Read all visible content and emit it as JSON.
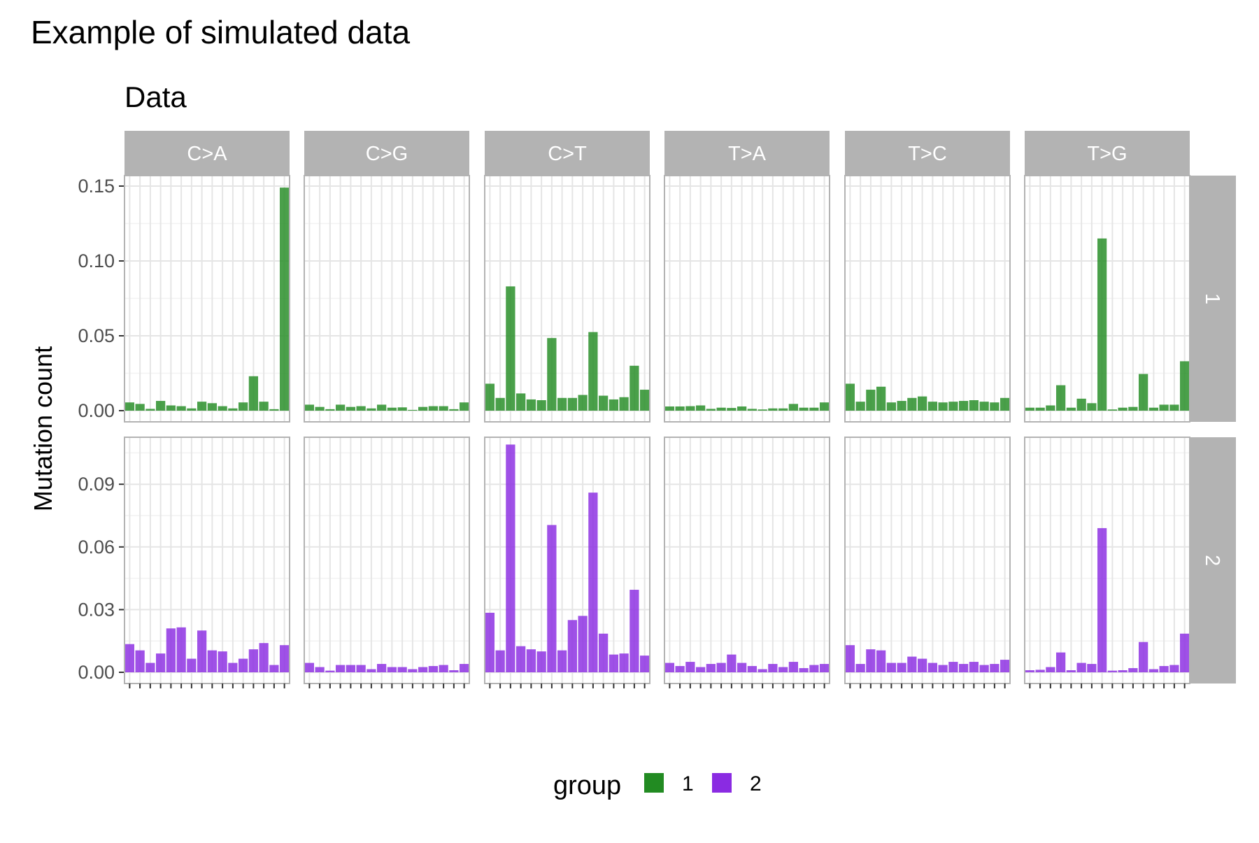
{
  "title": "Example of simulated data",
  "subtitle": "Data",
  "chart_data": {
    "type": "bar",
    "title": "Example of simulated data",
    "subtitle": "Data",
    "xlabel": "",
    "ylabel": "Mutation count",
    "facet_columns": [
      "C>A",
      "C>G",
      "C>T",
      "T>A",
      "T>C",
      "T>G"
    ],
    "facet_rows": [
      "1",
      "2"
    ],
    "legend": {
      "title": "group",
      "position": "bottom",
      "entries": [
        "1",
        "2"
      ]
    },
    "colors": {
      "1": "#228B22",
      "2": "#8A2BE2"
    },
    "grid": true,
    "scales": "free_y",
    "rows": [
      {
        "label": "1",
        "ylim": [
          0,
          0.157
        ],
        "yticks": [
          0,
          0.05,
          0.1,
          0.15
        ],
        "ytick_labels": [
          "0.00",
          "0.05",
          "0.10",
          "0.15"
        ],
        "panels": [
          {
            "facet": "C>A",
            "values": [
              0.0055,
              0.0045,
              0.0012,
              0.0065,
              0.0035,
              0.003,
              0.0015,
              0.006,
              0.005,
              0.003,
              0.0015,
              0.0055,
              0.023,
              0.006,
              0.001,
              0.149
            ]
          },
          {
            "facet": "C>G",
            "values": [
              0.004,
              0.0025,
              0.001,
              0.004,
              0.0025,
              0.003,
              0.0015,
              0.004,
              0.002,
              0.0022,
              0.0005,
              0.0025,
              0.003,
              0.003,
              0.001,
              0.0055
            ]
          },
          {
            "facet": "C>T",
            "values": [
              0.018,
              0.0085,
              0.083,
              0.0115,
              0.0075,
              0.007,
              0.0485,
              0.0085,
              0.0085,
              0.0105,
              0.0525,
              0.01,
              0.0075,
              0.009,
              0.03,
              0.014
            ]
          },
          {
            "facet": "T>A",
            "values": [
              0.0028,
              0.0028,
              0.003,
              0.0035,
              0.0012,
              0.002,
              0.0018,
              0.0028,
              0.0012,
              0.0008,
              0.0015,
              0.0015,
              0.0045,
              0.002,
              0.002,
              0.0055
            ]
          },
          {
            "facet": "T>C",
            "values": [
              0.018,
              0.006,
              0.014,
              0.016,
              0.0055,
              0.0065,
              0.0085,
              0.0095,
              0.006,
              0.0055,
              0.006,
              0.0065,
              0.007,
              0.006,
              0.0055,
              0.0085
            ]
          },
          {
            "facet": "T>G",
            "values": [
              0.002,
              0.002,
              0.0035,
              0.017,
              0.002,
              0.008,
              0.005,
              0.115,
              0.0008,
              0.002,
              0.0025,
              0.0245,
              0.002,
              0.004,
              0.004,
              0.033
            ]
          }
        ]
      },
      {
        "label": "2",
        "ylim": [
          0,
          0.1125
        ],
        "yticks": [
          0,
          0.03,
          0.06,
          0.09
        ],
        "ytick_labels": [
          "0.00",
          "0.03",
          "0.06",
          "0.09"
        ],
        "panels": [
          {
            "facet": "C>A",
            "values": [
              0.0135,
              0.0105,
              0.0045,
              0.009,
              0.021,
              0.0215,
              0.0065,
              0.02,
              0.0105,
              0.01,
              0.0045,
              0.0065,
              0.011,
              0.014,
              0.0035,
              0.013
            ]
          },
          {
            "facet": "C>G",
            "values": [
              0.0045,
              0.0025,
              0.0008,
              0.0035,
              0.0035,
              0.0035,
              0.0015,
              0.004,
              0.0025,
              0.0025,
              0.0015,
              0.0025,
              0.003,
              0.0035,
              0.001,
              0.004
            ]
          },
          {
            "facet": "C>T",
            "values": [
              0.0285,
              0.0105,
              0.109,
              0.0125,
              0.011,
              0.01,
              0.0705,
              0.0105,
              0.025,
              0.027,
              0.086,
              0.0185,
              0.0085,
              0.009,
              0.0395,
              0.008
            ]
          },
          {
            "facet": "T>A",
            "values": [
              0.0045,
              0.003,
              0.005,
              0.0025,
              0.004,
              0.0045,
              0.0085,
              0.0045,
              0.003,
              0.0015,
              0.004,
              0.0025,
              0.005,
              0.002,
              0.0035,
              0.004
            ]
          },
          {
            "facet": "T>C",
            "values": [
              0.013,
              0.004,
              0.011,
              0.0105,
              0.0045,
              0.0045,
              0.0075,
              0.0065,
              0.0045,
              0.0035,
              0.005,
              0.004,
              0.005,
              0.0035,
              0.004,
              0.006
            ]
          },
          {
            "facet": "T>G",
            "values": [
              0.001,
              0.0012,
              0.0025,
              0.0095,
              0.001,
              0.0045,
              0.004,
              0.069,
              0.0008,
              0.001,
              0.002,
              0.0145,
              0.0015,
              0.003,
              0.0035,
              0.0185
            ]
          }
        ]
      }
    ]
  }
}
